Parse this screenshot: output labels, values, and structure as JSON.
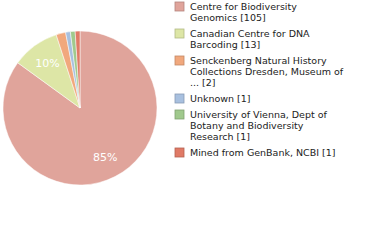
{
  "chart_data": {
    "type": "pie",
    "categories": [
      "Centre for Biodiversity Genomics [105]",
      "Canadian Centre for DNA Barcoding [13]",
      "Senckenberg Natural History Collections Dresden, Museum of ... [2]",
      "Unknown [1]",
      "University of Vienna, Dept of Botany and Biodiversity Research [1]",
      "Mined from GenBank, NCBI [1]"
    ],
    "values": [
      85,
      10,
      2,
      1,
      1,
      1
    ],
    "value_labels": [
      "85%",
      "10%",
      null,
      null,
      null,
      null
    ],
    "colors": [
      "#e0a49b",
      "#dde6a6",
      "#f1a87d",
      "#a8c0df",
      "#a0c98d",
      "#e07a66"
    ],
    "data_labels": true,
    "legend": "right"
  }
}
